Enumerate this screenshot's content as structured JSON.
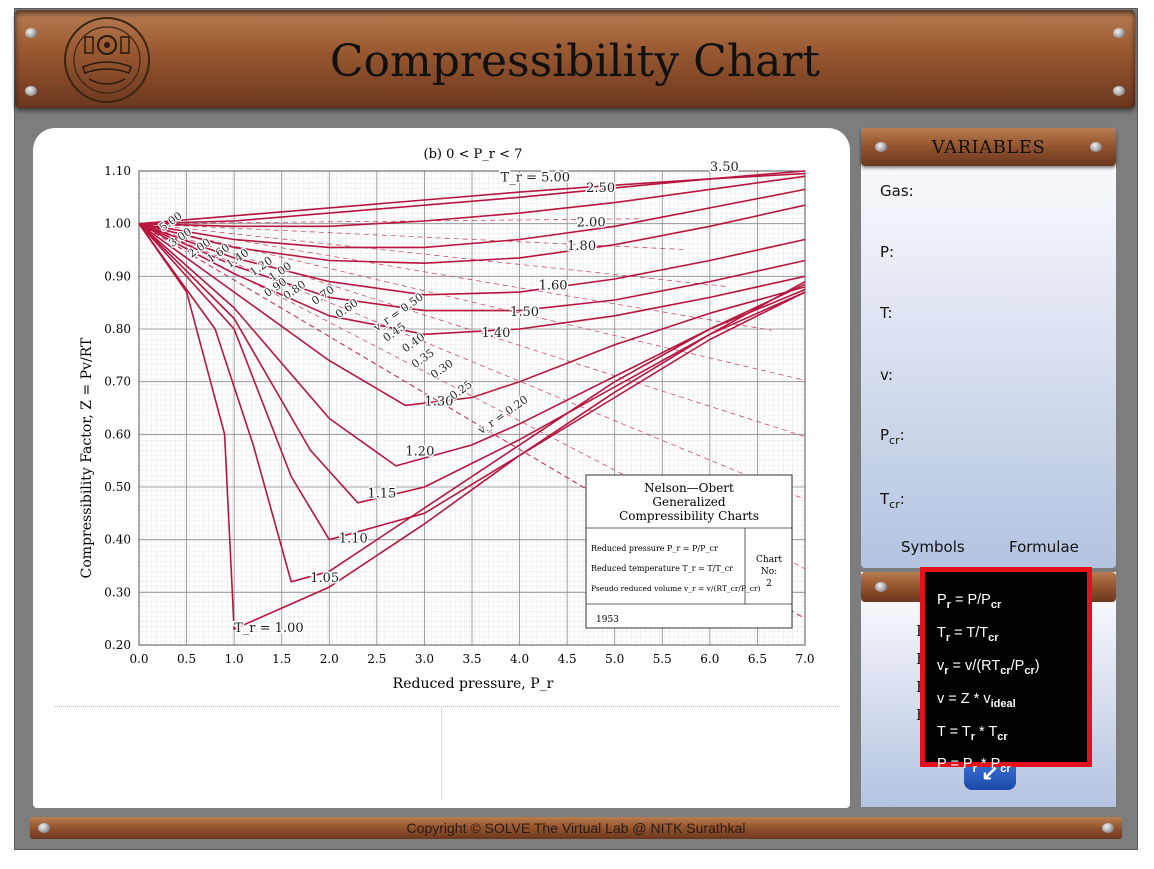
{
  "header": {
    "title": "Compressibility Chart"
  },
  "chart_panel": {
    "chart_data": {
      "type": "line",
      "title": "(b) 0 < P_r < 7",
      "xlabel": "Reduced pressure, P_r",
      "ylabel": "Compressibility Factor, Z = Pv/RT",
      "xlim": [
        0,
        7
      ],
      "ylim": [
        0.2,
        1.1
      ],
      "x_ticks": [
        "0.0",
        "0.5",
        "1.0",
        "1.5",
        "2.0",
        "2.5",
        "3.0",
        "3.5",
        "4.0",
        "4.5",
        "5.0",
        "5.5",
        "6.0",
        "6.5",
        "7.0"
      ],
      "y_ticks": [
        "0.20",
        "0.30",
        "0.40",
        "0.50",
        "0.60",
        "0.70",
        "0.80",
        "0.90",
        "1.00",
        "1.10"
      ],
      "grid": true,
      "series": [
        {
          "name": "T_r = 5.00",
          "x": [
            0,
            1,
            2,
            3,
            4,
            5,
            6,
            7
          ],
          "y": [
            1.0,
            1.015,
            1.03,
            1.045,
            1.06,
            1.073,
            1.085,
            1.095
          ]
        },
        {
          "name": "3.50",
          "x": [
            0,
            1,
            2,
            3,
            4,
            5,
            6,
            7
          ],
          "y": [
            1.0,
            1.005,
            1.02,
            1.035,
            1.05,
            1.068,
            1.085,
            1.1
          ]
        },
        {
          "name": "2.50",
          "x": [
            0,
            1,
            2,
            3,
            4,
            5,
            6,
            7
          ],
          "y": [
            1.0,
            0.995,
            0.995,
            1.005,
            1.02,
            1.04,
            1.065,
            1.09
          ]
        },
        {
          "name": "2.00",
          "x": [
            0,
            1,
            2,
            3,
            4,
            5,
            6,
            7
          ],
          "y": [
            1.0,
            0.97,
            0.955,
            0.955,
            0.97,
            0.995,
            1.03,
            1.065
          ]
        },
        {
          "name": "1.80",
          "x": [
            0,
            1,
            2,
            3,
            4,
            5,
            6,
            7
          ],
          "y": [
            1.0,
            0.955,
            0.93,
            0.925,
            0.935,
            0.96,
            0.995,
            1.035
          ]
        },
        {
          "name": "1.60",
          "x": [
            0,
            1,
            2,
            3,
            4,
            5,
            6,
            7
          ],
          "y": [
            1.0,
            0.935,
            0.89,
            0.865,
            0.87,
            0.895,
            0.93,
            0.97
          ]
        },
        {
          "name": "1.50",
          "x": [
            0,
            1,
            2,
            3,
            4,
            5,
            6,
            7
          ],
          "y": [
            1.0,
            0.92,
            0.86,
            0.835,
            0.835,
            0.855,
            0.89,
            0.93
          ]
        },
        {
          "name": "1.40",
          "x": [
            0,
            1,
            2,
            3,
            4,
            5,
            6,
            7
          ],
          "y": [
            1.0,
            0.905,
            0.825,
            0.79,
            0.8,
            0.825,
            0.86,
            0.9
          ]
        },
        {
          "name": "1.30",
          "x": [
            0,
            1,
            2,
            2.8,
            3.5,
            4,
            5,
            6,
            7
          ],
          "y": [
            1.0,
            0.87,
            0.74,
            0.655,
            0.67,
            0.7,
            0.77,
            0.83,
            0.88
          ]
        },
        {
          "name": "1.20",
          "x": [
            0,
            1,
            2,
            2.7,
            3.5,
            4,
            5,
            6,
            7
          ],
          "y": [
            1.0,
            0.84,
            0.63,
            0.54,
            0.58,
            0.62,
            0.71,
            0.8,
            0.875
          ]
        },
        {
          "name": "1.15",
          "x": [
            0,
            1,
            1.8,
            2.3,
            3,
            4,
            5,
            6,
            7
          ],
          "y": [
            1.0,
            0.82,
            0.57,
            0.47,
            0.5,
            0.59,
            0.69,
            0.79,
            0.87
          ]
        },
        {
          "name": "1.10",
          "x": [
            0,
            1,
            1.6,
            2,
            3,
            4,
            5,
            6,
            7
          ],
          "y": [
            1.0,
            0.8,
            0.52,
            0.4,
            0.45,
            0.56,
            0.67,
            0.78,
            0.87
          ]
        },
        {
          "name": "1.05",
          "x": [
            0,
            0.8,
            1.2,
            1.6,
            2,
            3,
            4,
            5,
            6,
            7
          ],
          "y": [
            1.0,
            0.8,
            0.58,
            0.32,
            0.34,
            0.46,
            0.58,
            0.7,
            0.8,
            0.885
          ]
        },
        {
          "name": "T_r = 1.00",
          "x": [
            0,
            0.5,
            0.9,
            1.0,
            1.5,
            2,
            3,
            4,
            5,
            6,
            7
          ],
          "y": [
            1.0,
            0.87,
            0.6,
            0.23,
            0.27,
            0.31,
            0.43,
            0.56,
            0.68,
            0.79,
            0.89
          ]
        }
      ],
      "line_labels": [
        "T_r = 5.00",
        "3.50",
        "2.50",
        "2.00",
        "1.80",
        "1.60",
        "1.50",
        "1.40",
        "1.30",
        "1.20",
        "1.15",
        "1.10",
        "1.05",
        "T_r = 1.00"
      ],
      "pseudo_volume_labels": [
        "5.00",
        "3.00",
        "2.00",
        "1.60",
        "1.40",
        "1.20",
        "1.00",
        "0.90",
        "0.80",
        "0.70",
        "0.60",
        "v_r = 0.50",
        "0.45",
        "0.40",
        "0.35",
        "0.30",
        "0.25",
        "v_r = 0.20"
      ],
      "legend_box": {
        "title_lines": [
          "Nelson—Obert",
          "Generalized",
          "Compressibility Charts"
        ],
        "rows": [
          "Reduced pressure P_r = P/P_cr",
          "Reduced temperature T_r = T/T_cr",
          "Pseudo reduced volume v_r = v/(RT_cr/P_cr)"
        ],
        "chart_no": [
          "Chart",
          "No:",
          "2"
        ],
        "year": "1953"
      }
    }
  },
  "variables": {
    "title": "VARIABLES",
    "gas": "Gas:",
    "p": "P:",
    "t": "T:",
    "v": "v:",
    "pcr": "P",
    "pcr_sub": "cr",
    "tcr": "T",
    "tcr_sub": "cr",
    "colon": ":",
    "symbols_tab": "Symbols",
    "formulae_tab": "Formulae"
  },
  "lower_panel": {
    "letters": [
      "F",
      "F",
      "F",
      "F"
    ],
    "arrow_glyph": "↙"
  },
  "formulae": {
    "pr": "Pr = P/Pcr",
    "tr": "Tr = T/Tcr",
    "vr": "vr = v/(RTcr/Pcr)",
    "v": "v = Z * videal",
    "t": "T = Tr * Tcr",
    "p": "P = Pr * Pcr"
  },
  "footer": {
    "text": "Copyright © SOLVE The Virtual Lab @ NITK Surathkal"
  }
}
